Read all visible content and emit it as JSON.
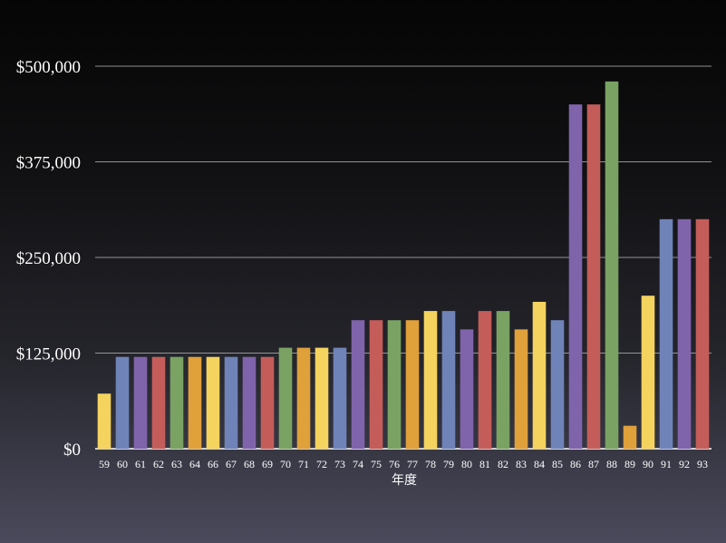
{
  "chart_data": {
    "type": "bar",
    "title": "",
    "xlabel": "年度",
    "ylabel": "",
    "ylim": [
      0,
      500000
    ],
    "yticks": [
      0,
      125000,
      250000,
      375000,
      500000
    ],
    "ytick_labels": [
      "$0",
      "$125,000",
      "$250,000",
      "$375,000",
      "$500,000"
    ],
    "grid": true,
    "legend": "none",
    "categories": [
      "59",
      "60",
      "61",
      "62",
      "63",
      "64",
      "66",
      "67",
      "68",
      "69",
      "70",
      "71",
      "72",
      "73",
      "74",
      "75",
      "76",
      "77",
      "78",
      "79",
      "80",
      "81",
      "82",
      "83",
      "84",
      "85",
      "86",
      "87",
      "88",
      "89",
      "90",
      "91",
      "92",
      "93"
    ],
    "values": [
      72000,
      120000,
      120000,
      120000,
      120000,
      120000,
      120000,
      120000,
      120000,
      120000,
      132000,
      132000,
      132000,
      132000,
      168000,
      168000,
      168000,
      168000,
      180000,
      180000,
      156000,
      180000,
      180000,
      156000,
      192000,
      168000,
      450000,
      450000,
      480000,
      30000,
      200000,
      300000,
      300000,
      300000
    ],
    "colors": [
      "#f4d35e",
      "#6f83b8",
      "#7f64ab",
      "#c45d5a",
      "#7aa263",
      "#e0a03a",
      "#f4d35e",
      "#6f83b8",
      "#7f64ab",
      "#c45d5a",
      "#7aa263",
      "#e0a03a",
      "#f4d35e",
      "#6f83b8",
      "#7f64ab",
      "#c45d5a",
      "#7aa263",
      "#e0a03a",
      "#f4d35e",
      "#6f83b8",
      "#7f64ab",
      "#c45d5a",
      "#7aa263",
      "#e0a03a",
      "#f4d35e",
      "#6f83b8",
      "#7f64ab",
      "#c45d5a",
      "#7aa263",
      "#e0a03a",
      "#f4d35e",
      "#6f83b8",
      "#7f64ab",
      "#c45d5a"
    ]
  }
}
